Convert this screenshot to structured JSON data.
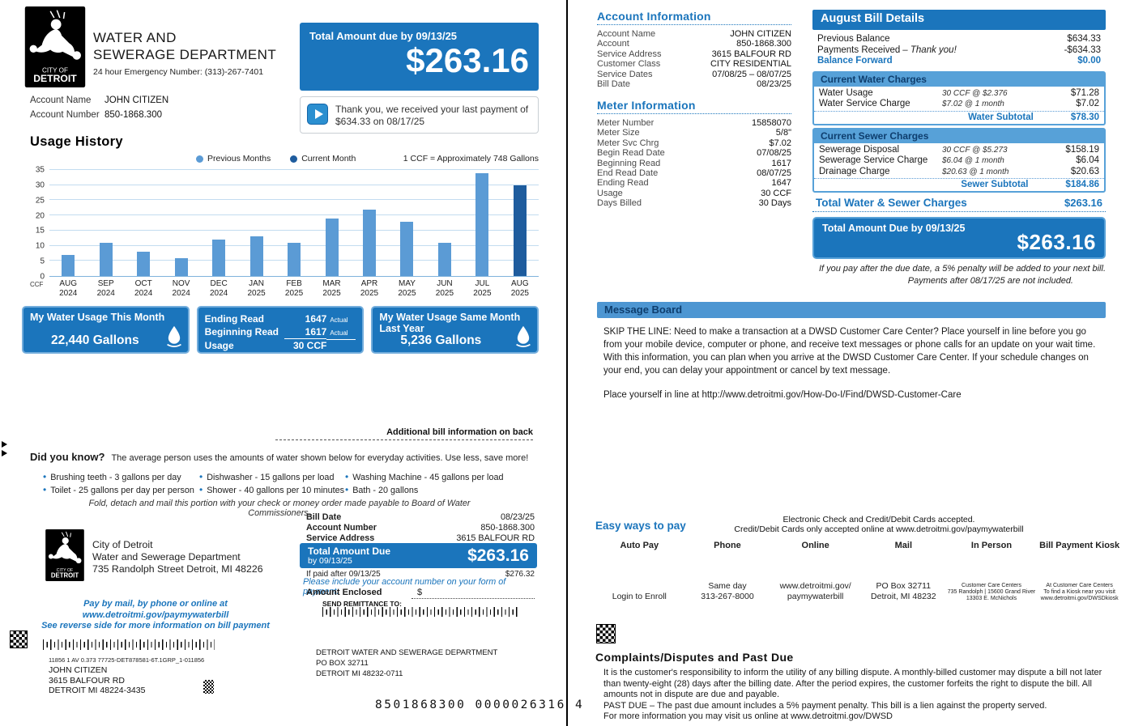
{
  "colors": {
    "primary_blue": "#1B75BC",
    "medium_blue": "#57A1D8"
  },
  "chart_data": {
    "type": "bar",
    "title": "Usage History",
    "categories": [
      "AUG 2024",
      "SEP 2024",
      "OCT 2024",
      "NOV 2024",
      "DEC 2024",
      "JAN 2025",
      "FEB 2025",
      "MAR 2025",
      "APR 2025",
      "MAY 2025",
      "JUN 2025",
      "JUL 2025",
      "AUG 2025"
    ],
    "values": [
      7,
      11,
      8,
      6,
      12,
      13,
      11,
      19,
      22,
      18,
      11,
      34,
      30
    ],
    "current_month_index": 12,
    "legend": [
      "Previous Months",
      "Current Month"
    ],
    "note": "1 CCF = Approximately 748 Gallons",
    "ylabel": "CCF",
    "ylim": [
      0,
      35
    ],
    "yticks": [
      0,
      5,
      10,
      15,
      20,
      25,
      30,
      35
    ],
    "colors": {
      "previous": "#5B9BD5",
      "current": "#1E5C9E"
    }
  },
  "page1": {
    "logo": {
      "city_of": "CITY OF",
      "detroit": "DETROIT"
    },
    "dept_name_line1": "WATER AND",
    "dept_name_line2": "SEWERAGE DEPARTMENT",
    "emergency_line": "24 hour Emergency Number: (313)-267-7401",
    "account_name_label": "Account Name",
    "account_name": "JOHN CITIZEN",
    "account_number_label": "Account Number",
    "account_number": "850-1868.300",
    "total_due_box": {
      "title": "Total Amount due by 09/13/25",
      "amount": "$263.16"
    },
    "payment_thanks": {
      "line1": "Thank you, we received your last payment of",
      "line2": "$634.33 on 08/17/25"
    },
    "usage_this_month": {
      "title": "My Water Usage This Month",
      "value": "22,440 Gallons"
    },
    "reads_box": {
      "ending_label": "Ending Read",
      "ending_value": "1647",
      "ending_qual": "Actual",
      "beginning_label": "Beginning Read",
      "beginning_value": "1617",
      "beginning_qual": "Actual",
      "usage_label": "Usage",
      "usage_value": "30 CCF"
    },
    "usage_last_year": {
      "title": "My Water Usage Same Month\nLast Year",
      "value": "5,236 Gallons"
    },
    "additional_info": "Additional bill information on back",
    "did_you_know": {
      "title": "Did you know?",
      "intro": "The average person uses the amounts of water shown below for everyday activities.  Use less, save more!",
      "facts": [
        "Brushing teeth - 3 gallons per day",
        "Toilet - 25 gallons per day per person",
        "Dishwasher - 15 gallons per load",
        "Shower - 40 gallons per 10 minutes",
        "Washing Machine - 45 gallons per load",
        "Bath - 20 gallons"
      ]
    },
    "remittance": {
      "fold_note": "Fold, detach and mail this portion with your check or money order made payable to Board of Water Commissioners.",
      "org": "City of Detroit\nWater and Sewerage Department\n735 Randolph Street Detroit, MI 48226",
      "fields": [
        {
          "label": "Bill Date",
          "value": "08/23/25"
        },
        {
          "label": "Account Number",
          "value": "850-1868.300"
        },
        {
          "label": "Service Address",
          "value": "3615 BALFOUR RD"
        }
      ],
      "total_label_line1": "Total Amount Due",
      "total_label_line2": "by 09/13/25",
      "total_amount": "$263.16",
      "late_label": "If paid after 09/13/25",
      "late_amount": "$276.32",
      "include_note": "Please include your account number on your form of payment.",
      "amount_enclosed_label": "Amount Enclosed",
      "currency_symbol": "$",
      "send_remittance_label": "SEND REMITTANCE TO:",
      "pay_line1": "Pay by mail, by phone or online at www.detroitmi.gov/paymywaterbill",
      "pay_line2": "See reverse side for more information on bill payment",
      "print_code": "11856 1 AV 0.373    77725-DET878581-6T.1GRP_1-011856",
      "addressee": "JOHN CITIZEN\n3615 BALFOUR RD\nDETROIT  MI  48224-3435",
      "payee_address": "DETROIT WATER AND SEWERAGE DEPARTMENT\nPO BOX 32711\nDETROIT  MI  48232-0711",
      "ocr_line": "8501868300 0000026316 4"
    }
  },
  "page2": {
    "account_information": {
      "title": "Account Information",
      "rows": [
        {
          "label": "Account Name",
          "value": "JOHN CITIZEN"
        },
        {
          "label": "Account",
          "value": "850-1868.300"
        },
        {
          "label": "Service Address",
          "value": "3615 BALFOUR RD"
        },
        {
          "label": "Customer Class",
          "value": "CITY RESIDENTIAL"
        },
        {
          "label": "Service Dates",
          "value": "07/08/25 – 08/07/25"
        },
        {
          "label": "Bill Date",
          "value": "08/23/25"
        }
      ]
    },
    "meter_information": {
      "title": "Meter Information",
      "rows": [
        {
          "label": "Meter Number",
          "value": "15858070"
        },
        {
          "label": "Meter Size",
          "value": "5/8\""
        },
        {
          "label": "Meter Svc Chrg",
          "value": "$7.02"
        },
        {
          "label": "Begin Read Date",
          "value": "07/08/25"
        },
        {
          "label": "Beginning Read",
          "value": "1617"
        },
        {
          "label": "End Read Date",
          "value": "08/07/25"
        },
        {
          "label": "Ending Read",
          "value": "1647"
        },
        {
          "label": "Usage",
          "value": "30 CCF"
        },
        {
          "label": "Days Billed",
          "value": "30 Days"
        }
      ]
    },
    "bill_details": {
      "title": "August Bill Details",
      "balance_rows": [
        {
          "label": "Previous Balance",
          "note": "",
          "value": "$634.33"
        },
        {
          "label": "Payments Received",
          "note": "– Thank you!",
          "value": "-$634.33"
        },
        {
          "label": "Balance Forward",
          "note": "",
          "value": "$0.00"
        }
      ],
      "water": {
        "header": "Current Water Charges",
        "rows": [
          {
            "label": "Water Usage",
            "detail": "30 CCF @ $2.376",
            "value": "$71.28"
          },
          {
            "label": "Water Service Charge",
            "detail": "$7.02 @ 1 month",
            "value": "$7.02"
          }
        ],
        "subtotal_label": "Water Subtotal",
        "subtotal_value": "$78.30"
      },
      "sewer": {
        "header": "Current Sewer Charges",
        "rows": [
          {
            "label": "Sewerage Disposal",
            "detail": "30 CCF @ $5.273",
            "value": "$158.19"
          },
          {
            "label": "Sewerage Service Charge",
            "detail": "$6.04 @ 1 month",
            "value": "$6.04"
          },
          {
            "label": "Drainage Charge",
            "detail": "$20.63 @ 1 month",
            "value": "$20.63"
          }
        ],
        "subtotal_label": "Sewer Subtotal",
        "subtotal_value": "$184.86"
      },
      "total_label": "Total Water & Sewer Charges",
      "total_value": "$263.16",
      "due_box": {
        "title": "Total Amount Due by 09/13/25",
        "amount": "$263.16"
      },
      "penalty_note": "If you pay after the due date, a 5% penalty will be added to your next bill.",
      "payments_note": "Payments after 08/17/25 are not included."
    },
    "message_board": {
      "title": "Message Board",
      "body": "SKIP THE LINE: Need to make a transaction at a DWSD Customer Care Center? Place yourself in line before you go from your mobile device, computer or phone, and receive text messages or phone calls for an update on your wait time. With this information, you can plan when you arrive at the DWSD Customer Care Center. If your schedule changes on your end, you can delay your appointment or cancel by text message.",
      "link_line": "Place yourself in line at http://www.detroitmi.gov/How-Do-I/Find/DWSD-Customer-Care"
    },
    "easy_ways": {
      "title": "Easy ways to pay",
      "note_line1": "Electronic Check and Credit/Debit Cards accepted.",
      "note_line2": "Credit/Debit Cards only accepted online at www.detroitmi.gov/paymywaterbill",
      "columns": [
        {
          "header": "Auto Pay",
          "body": "Login to Enroll"
        },
        {
          "header": "Phone",
          "body": "Same day\n313-267-8000"
        },
        {
          "header": "Online",
          "body": "www.detroitmi.gov/\npaymywaterbill"
        },
        {
          "header": "Mail",
          "body": "PO Box 32711\nDetroit, MI 48232"
        },
        {
          "header": "In Person",
          "body": "Customer Care Centers\n735 Randolph | 15600 Grand River\n13303 E. McNichols"
        },
        {
          "header": "Bill Payment Kiosk",
          "body": "At Customer Care Centers\nTo find a Kiosk near you visit\nwww.detroitmi.gov/DWSDkiosk"
        }
      ]
    },
    "complaints": {
      "title": "Complaints/Disputes and Past Due",
      "p1": "It is the customer's responsibility to inform the utility of any billing dispute.  A monthly-billed customer may dispute a bill not later than twenty-eight (28) days after the billing date.  After the period expires, the customer forfeits the right to dispute the bill.  All amounts not in dispute are due and payable.",
      "p2": "PAST DUE – The past due amount includes a 5% payment penalty.  This bill is a lien against the property served.",
      "p3": "For more information you may visit us online at www.detroitmi.gov/DWSD"
    }
  }
}
